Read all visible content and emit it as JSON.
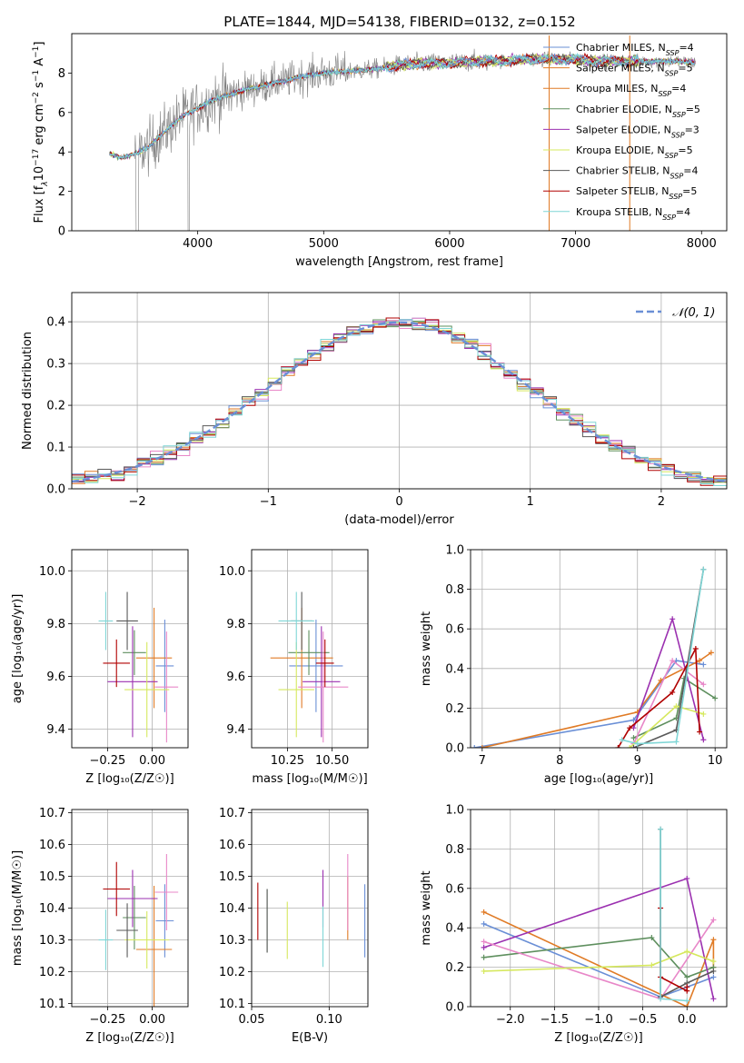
{
  "figure_title": "PLATE=1844, MJD=54138, FIBERID=0132, z=0.152",
  "colors": {
    "c1": "#6a8fd6",
    "c2": "#e07b26",
    "c3": "#5e8f5e",
    "c4": "#9b30b0",
    "c5": "#e887c8",
    "c6": "#d6e85e",
    "c7": "#5a5a5a",
    "c8": "#b00000",
    "c9": "#7fd6d6"
  },
  "chart_data": [
    {
      "id": "spectrum",
      "type": "line",
      "xlabel": "wavelength [Angstrom, rest frame]",
      "xlim": [
        3000,
        8200
      ],
      "ylim": [
        0,
        10
      ],
      "xticks": [
        4000,
        5000,
        6000,
        7000,
        8000
      ],
      "yticks": [
        0,
        2,
        4,
        6,
        8
      ],
      "ylabel_parts": [
        "Flux [f",
        "λ",
        "10",
        "−17",
        " erg cm",
        "−2",
        " s",
        "−1",
        " A",
        "−1",
        "]"
      ],
      "legend": [
        {
          "label": "Chabrier MILES, N",
          "sub": "SSP",
          "tail": "=4",
          "color_key": "c1"
        },
        {
          "label": "Salpeter MILES, N",
          "sub": "SSP",
          "tail": "=5",
          "color_key": "c2"
        },
        {
          "label": "Kroupa MILES, N",
          "sub": "SSP",
          "tail": "=4",
          "color_key": "c2"
        },
        {
          "label": "Chabrier ELODIE, N",
          "sub": "SSP",
          "tail": "=5",
          "color_key": "c3"
        },
        {
          "label": "Salpeter ELODIE, N",
          "sub": "SSP",
          "tail": "=3",
          "color_key": "c4"
        },
        {
          "label": "Kroupa ELODIE, N",
          "sub": "SSP",
          "tail": "=5",
          "color_key": "c6"
        },
        {
          "label": "Chabrier STELIB, N",
          "sub": "SSP",
          "tail": "=4",
          "color_key": "c7"
        },
        {
          "label": "Salpeter STELIB, N",
          "sub": "SSP",
          "tail": "=5",
          "color_key": "c8"
        },
        {
          "label": "Kroupa STELIB, N",
          "sub": "SSP",
          "tail": "=4",
          "color_key": "c9"
        }
      ],
      "model_curve": {
        "x": [
          3300,
          3400,
          3500,
          3600,
          3700,
          3800,
          3900,
          4000,
          4100,
          4200,
          4300,
          4400,
          4500,
          4600,
          4700,
          4800,
          4900,
          5000,
          5200,
          5400,
          5600,
          5800,
          6000,
          6200,
          6400,
          6600,
          6800,
          7000,
          7200,
          7400,
          7600,
          7800,
          8000
        ],
        "y": [
          3.9,
          3.7,
          3.9,
          4.2,
          4.8,
          5.4,
          5.9,
          6.2,
          6.6,
          6.8,
          7.0,
          7.2,
          7.3,
          7.5,
          7.6,
          7.8,
          7.9,
          8.0,
          8.1,
          8.2,
          8.4,
          8.5,
          8.5,
          8.6,
          8.6,
          8.7,
          8.7,
          8.7,
          8.6,
          8.6,
          8.6,
          8.6,
          8.5
        ]
      }
    },
    {
      "id": "residuals",
      "type": "line",
      "xlabel": "(data-model)/error",
      "ylabel": "Normed distribution",
      "xlim": [
        -2.5,
        2.5
      ],
      "ylim": [
        0,
        0.47
      ],
      "xticks": [
        -2,
        -1,
        0,
        1,
        2
      ],
      "yticks": [
        0.0,
        0.1,
        0.2,
        0.3,
        0.4
      ],
      "legend": [
        {
          "label": "𝒩(0, 1)",
          "color_key": "c1"
        }
      ]
    },
    {
      "id": "age_vs_Z",
      "type": "scatter",
      "xlabel": "Z [log₁₀(Z/Z☉)]",
      "ylabel": "age  [log₁₀(age/yr)]",
      "xlim": [
        -0.45,
        0.2
      ],
      "ylim": [
        9.33,
        10.08
      ],
      "xticks": [
        -0.25,
        0.0
      ],
      "yticks": [
        9.4,
        9.6,
        9.8,
        10.0
      ],
      "points": [
        {
          "x": 0.07,
          "y": 9.64,
          "xerr": 0.1,
          "yerr": 0.35,
          "color_key": "c1"
        },
        {
          "x": 0.01,
          "y": 9.67,
          "xerr": 0.2,
          "yerr": 0.38,
          "color_key": "c2"
        },
        {
          "x": -0.1,
          "y": 9.69,
          "xerr": 0.13,
          "yerr": 0.17,
          "color_key": "c3"
        },
        {
          "x": -0.11,
          "y": 9.58,
          "xerr": 0.28,
          "yerr": 0.42,
          "color_key": "c4"
        },
        {
          "x": 0.08,
          "y": 9.56,
          "xerr": 0.13,
          "yerr": 0.42,
          "color_key": "c5"
        },
        {
          "x": -0.03,
          "y": 9.55,
          "xerr": 0.25,
          "yerr": 0.36,
          "color_key": "c6"
        },
        {
          "x": -0.14,
          "y": 9.81,
          "xerr": 0.12,
          "yerr": 0.22,
          "color_key": "c7"
        },
        {
          "x": -0.2,
          "y": 9.65,
          "xerr": 0.15,
          "yerr": 0.18,
          "color_key": "c8"
        },
        {
          "x": -0.26,
          "y": 9.81,
          "xerr": 0.08,
          "yerr": 0.22,
          "color_key": "c9"
        }
      ]
    },
    {
      "id": "age_vs_mass",
      "type": "scatter",
      "xlabel": "mass [log₁₀(M/M☉)]",
      "xlim": [
        10.05,
        10.7
      ],
      "ylim": [
        9.33,
        10.08
      ],
      "xticks": [
        10.25,
        10.5
      ],
      "yticks": [
        9.4,
        9.6,
        9.8,
        10.0
      ],
      "points": [
        {
          "x": 10.41,
          "y": 9.64,
          "xerr": 0.3,
          "yerr": 0.35,
          "color_key": "c1"
        },
        {
          "x": 10.33,
          "y": 9.67,
          "xerr": 0.35,
          "yerr": 0.38,
          "color_key": "c2"
        },
        {
          "x": 10.37,
          "y": 9.69,
          "xerr": 0.23,
          "yerr": 0.17,
          "color_key": "c3"
        },
        {
          "x": 10.44,
          "y": 9.58,
          "xerr": 0.21,
          "yerr": 0.42,
          "color_key": "c4"
        },
        {
          "x": 10.45,
          "y": 9.56,
          "xerr": 0.28,
          "yerr": 0.42,
          "color_key": "c5"
        },
        {
          "x": 10.3,
          "y": 9.55,
          "xerr": 0.2,
          "yerr": 0.36,
          "color_key": "c6"
        },
        {
          "x": 10.33,
          "y": 9.81,
          "xerr": 0.12,
          "yerr": 0.22,
          "color_key": "c7"
        },
        {
          "x": 10.46,
          "y": 9.65,
          "xerr": 0.1,
          "yerr": 0.18,
          "color_key": "c8"
        },
        {
          "x": 10.3,
          "y": 9.81,
          "xerr": 0.2,
          "yerr": 0.22,
          "color_key": "c9"
        }
      ]
    },
    {
      "id": "mass_weight_vs_age",
      "type": "line",
      "xlabel": "age  [log₁₀(age/yr)]",
      "ylabel": "mass weight",
      "xlim": [
        6.85,
        10.15
      ],
      "ylim": [
        0,
        1.0
      ],
      "xticks": [
        7,
        8,
        9,
        10
      ],
      "yticks": [
        0.0,
        0.2,
        0.4,
        0.6,
        0.8,
        1.0
      ],
      "series": [
        {
          "color_key": "c1",
          "x": [
            6.9,
            8.95,
            9.5,
            9.85
          ],
          "y": [
            0.0,
            0.14,
            0.44,
            0.42
          ]
        },
        {
          "color_key": "c2",
          "x": [
            7.0,
            9.0,
            9.3,
            9.8,
            9.95
          ],
          "y": [
            0.0,
            0.18,
            0.34,
            0.44,
            0.48
          ]
        },
        {
          "color_key": "c3",
          "x": [
            8.95,
            9.5,
            9.6,
            10.0
          ],
          "y": [
            0.05,
            0.15,
            0.35,
            0.25
          ]
        },
        {
          "color_key": "c4",
          "x": [
            8.95,
            9.45,
            9.85
          ],
          "y": [
            0.1,
            0.65,
            0.04
          ]
        },
        {
          "color_key": "c5",
          "x": [
            8.95,
            9.45,
            9.85
          ],
          "y": [
            0.02,
            0.44,
            0.32
          ]
        },
        {
          "color_key": "c6",
          "x": [
            8.9,
            9.5,
            9.85
          ],
          "y": [
            0.0,
            0.21,
            0.17
          ]
        },
        {
          "color_key": "c7",
          "x": [
            8.95,
            9.5,
            9.85
          ],
          "y": [
            0.0,
            0.09,
            0.9
          ]
        },
        {
          "color_key": "c8",
          "x": [
            8.75,
            8.9,
            9.45,
            9.75,
            9.8
          ],
          "y": [
            0.0,
            0.1,
            0.28,
            0.5,
            0.08
          ]
        },
        {
          "color_key": "c9",
          "x": [
            8.8,
            9.0,
            9.5,
            9.85
          ],
          "y": [
            0.04,
            0.02,
            0.03,
            0.9
          ]
        }
      ]
    },
    {
      "id": "mass_vs_Z",
      "type": "scatter",
      "xlabel": "Z [log₁₀(Z/Z☉)]",
      "ylabel": "mass [log₁₀(M/M☉)]",
      "xlim": [
        -0.45,
        0.2
      ],
      "ylim": [
        10.09,
        10.71
      ],
      "xticks": [
        -0.25,
        0.0
      ],
      "yticks": [
        10.1,
        10.2,
        10.3,
        10.4,
        10.5,
        10.6,
        10.7
      ],
      "points": [
        {
          "x": 0.07,
          "y": 10.36,
          "xerr": 0.1,
          "yerr": 0.23,
          "color_key": "c1"
        },
        {
          "x": 0.01,
          "y": 10.27,
          "xerr": 0.2,
          "yerr": 0.4,
          "color_key": "c2"
        },
        {
          "x": -0.1,
          "y": 10.37,
          "xerr": 0.13,
          "yerr": 0.2,
          "color_key": "c3"
        },
        {
          "x": -0.11,
          "y": 10.43,
          "xerr": 0.28,
          "yerr": 0.18,
          "color_key": "c4"
        },
        {
          "x": 0.08,
          "y": 10.45,
          "xerr": 0.13,
          "yerr": 0.24,
          "color_key": "c5"
        },
        {
          "x": -0.03,
          "y": 10.3,
          "xerr": 0.25,
          "yerr": 0.18,
          "color_key": "c6"
        },
        {
          "x": -0.14,
          "y": 10.33,
          "xerr": 0.12,
          "yerr": 0.17,
          "color_key": "c7"
        },
        {
          "x": -0.2,
          "y": 10.46,
          "xerr": 0.15,
          "yerr": 0.17,
          "color_key": "c8"
        },
        {
          "x": -0.26,
          "y": 10.3,
          "xerr": 0.08,
          "yerr": 0.19,
          "color_key": "c9"
        }
      ]
    },
    {
      "id": "mass_vs_EBV",
      "type": "scatter",
      "xlabel": "E(B-V)",
      "xlim": [
        0.05,
        0.125
      ],
      "ylim": [
        10.09,
        10.71
      ],
      "xticks": [
        0.05,
        0.1
      ],
      "yticks": [
        10.1,
        10.2,
        10.3,
        10.4,
        10.5,
        10.6,
        10.7
      ],
      "points": [
        {
          "x": 0.123,
          "y": 10.36,
          "yerr": 0.23,
          "color_key": "c1"
        },
        {
          "x": 0.112,
          "y": 10.4,
          "yerr": 0.2,
          "color_key": "c2"
        },
        {
          "x": 0.06,
          "y": 10.36,
          "yerr": 0.2,
          "color_key": "c3"
        },
        {
          "x": 0.096,
          "y": 10.43,
          "yerr": 0.18,
          "color_key": "c4"
        },
        {
          "x": 0.112,
          "y": 10.45,
          "yerr": 0.24,
          "color_key": "c5"
        },
        {
          "x": 0.073,
          "y": 10.33,
          "yerr": 0.18,
          "color_key": "c6"
        },
        {
          "x": 0.06,
          "y": 10.36,
          "yerr": 0.2,
          "color_key": "c7"
        },
        {
          "x": 0.054,
          "y": 10.39,
          "yerr": 0.18,
          "color_key": "c8"
        },
        {
          "x": 0.096,
          "y": 10.31,
          "yerr": 0.19,
          "color_key": "c9"
        }
      ]
    },
    {
      "id": "mass_weight_vs_Z",
      "type": "line",
      "xlabel": "Z [log₁₀(Z/Z☉)]",
      "ylabel": "mass weight",
      "xlim": [
        -2.45,
        0.45
      ],
      "ylim": [
        0,
        1.0
      ],
      "xticks": [
        -2.0,
        -1.5,
        -1.0,
        -0.5,
        0.0
      ],
      "yticks": [
        0.0,
        0.2,
        0.4,
        0.6,
        0.8,
        1.0
      ],
      "series": [
        {
          "color_key": "c1",
          "x": [
            -2.3,
            -0.3,
            0.3
          ],
          "y": [
            0.42,
            0.05,
            0.15
          ]
        },
        {
          "color_key": "c2",
          "x": [
            -2.3,
            0.0,
            0.3,
            0.3
          ],
          "y": [
            0.48,
            0.0,
            0.34,
            0.2
          ]
        },
        {
          "color_key": "c3",
          "x": [
            -2.3,
            -0.4,
            0.0,
            0.3
          ],
          "y": [
            0.25,
            0.35,
            0.15,
            0.2
          ]
        },
        {
          "color_key": "c4",
          "x": [
            -2.3,
            0.0,
            0.3
          ],
          "y": [
            0.3,
            0.65,
            0.04
          ]
        },
        {
          "color_key": "c5",
          "x": [
            -2.3,
            -0.3,
            0.3
          ],
          "y": [
            0.33,
            0.04,
            0.44
          ]
        },
        {
          "color_key": "c6",
          "x": [
            -2.3,
            -0.4,
            0.0,
            0.3
          ],
          "y": [
            0.18,
            0.21,
            0.28,
            0.23
          ]
        },
        {
          "color_key": "c7",
          "x": [
            -0.3,
            -0.3,
            0.0,
            0.3
          ],
          "y": [
            0.9,
            0.05,
            0.12,
            0.18
          ]
        },
        {
          "color_key": "c8",
          "x": [
            -0.3,
            -0.3,
            0.0,
            0.0
          ],
          "y": [
            0.5,
            0.15,
            0.08,
            0.1
          ]
        },
        {
          "color_key": "c9",
          "x": [
            -0.3,
            -0.3,
            0.0
          ],
          "y": [
            0.9,
            0.04,
            0.03
          ]
        }
      ]
    }
  ]
}
